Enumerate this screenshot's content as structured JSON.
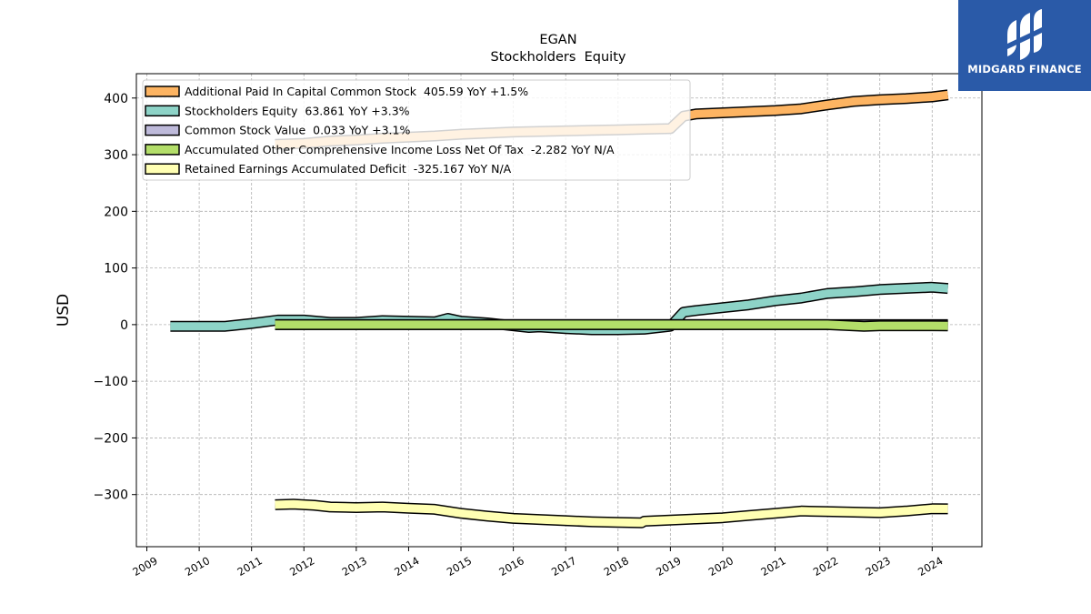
{
  "chart_data": {
    "type": "area",
    "title": "EGAN",
    "subtitle": "Stockholders  Equity",
    "ylabel": "USD",
    "xlabel": "",
    "xlim": [
      2008.8,
      2024.95
    ],
    "ylim": [
      -392,
      443
    ],
    "yticks": [
      400,
      300,
      200,
      100,
      0,
      -100,
      -200,
      -300
    ],
    "ytick_labels": [
      "400",
      "300",
      "200",
      "100",
      "0",
      "−100",
      "−200",
      "−300"
    ],
    "xticks": [
      2009,
      2010,
      2011,
      2012,
      2013,
      2014,
      2015,
      2016,
      2017,
      2018,
      2019,
      2020,
      2021,
      2022,
      2023,
      2024
    ],
    "xtick_labels": [
      "2009",
      "2010",
      "2011",
      "2012",
      "2013",
      "2014",
      "2015",
      "2016",
      "2017",
      "2018",
      "2019",
      "2020",
      "2021",
      "2022",
      "2023",
      "2024"
    ],
    "grid": true,
    "legend_position": "top-left",
    "series": [
      {
        "name": "Additional Paid In Capital Common Stock",
        "legend_label": "Additional Paid In Capital Common Stock  405.59 YoY +1.5%",
        "color": "#fdb462",
        "points": [
          [
            2011.45,
            318
          ],
          [
            2012.0,
            320
          ],
          [
            2012.5,
            324
          ],
          [
            2013.0,
            326
          ],
          [
            2013.5,
            329
          ],
          [
            2014.0,
            331
          ],
          [
            2014.5,
            333
          ],
          [
            2015.0,
            336
          ],
          [
            2015.5,
            338
          ],
          [
            2016.0,
            340
          ],
          [
            2016.5,
            341
          ],
          [
            2017.0,
            342
          ],
          [
            2017.5,
            343
          ],
          [
            2018.0,
            344
          ],
          [
            2018.5,
            345
          ],
          [
            2019.0,
            346
          ],
          [
            2019.25,
            368
          ],
          [
            2019.5,
            372
          ],
          [
            2020.0,
            374
          ],
          [
            2020.5,
            376
          ],
          [
            2021.0,
            378
          ],
          [
            2021.5,
            381
          ],
          [
            2022.0,
            388
          ],
          [
            2022.5,
            394
          ],
          [
            2023.0,
            397
          ],
          [
            2023.5,
            399
          ],
          [
            2024.0,
            402
          ],
          [
            2024.3,
            405.59
          ]
        ]
      },
      {
        "name": "Stockholders Equity",
        "legend_label": "Stockholders Equity  63.861 YoY +3.3%",
        "color": "#8dd3c7",
        "points": [
          [
            2009.45,
            -3
          ],
          [
            2010.0,
            -3
          ],
          [
            2010.5,
            -3
          ],
          [
            2011.0,
            2
          ],
          [
            2011.5,
            8
          ],
          [
            2012.0,
            8
          ],
          [
            2012.5,
            4
          ],
          [
            2013.0,
            4
          ],
          [
            2013.5,
            7
          ],
          [
            2014.0,
            6
          ],
          [
            2014.5,
            5
          ],
          [
            2014.75,
            11
          ],
          [
            2015.0,
            6
          ],
          [
            2015.5,
            3
          ],
          [
            2016.0,
            -2
          ],
          [
            2016.3,
            -5
          ],
          [
            2016.5,
            -4
          ],
          [
            2017.0,
            -7
          ],
          [
            2017.5,
            -9
          ],
          [
            2018.0,
            -9
          ],
          [
            2018.5,
            -8
          ],
          [
            2019.0,
            -3
          ],
          [
            2019.25,
            22
          ],
          [
            2019.5,
            25
          ],
          [
            2020.0,
            30
          ],
          [
            2020.5,
            35
          ],
          [
            2021.0,
            42
          ],
          [
            2021.5,
            47
          ],
          [
            2022.0,
            55
          ],
          [
            2022.5,
            58
          ],
          [
            2023.0,
            62
          ],
          [
            2023.5,
            64
          ],
          [
            2024.0,
            66
          ],
          [
            2024.3,
            63.861
          ]
        ]
      },
      {
        "name": "Common Stock Value",
        "legend_label": "Common Stock Value  0.033 YoY +3.1%",
        "color": "#bebada",
        "points": [
          [
            2011.45,
            0.03
          ],
          [
            2024.3,
            0.033
          ]
        ]
      },
      {
        "name": "Accumulated Other Comprehensive Income Loss Net Of Tax",
        "legend_label": "Accumulated Other Comprehensive Income Loss Net Of Tax  -2.282 YoY N/A",
        "color": "#b3de69",
        "points": [
          [
            2011.45,
            0
          ],
          [
            2018.0,
            0
          ],
          [
            2022.0,
            0
          ],
          [
            2022.7,
            -3
          ],
          [
            2023.0,
            -2
          ],
          [
            2023.5,
            -2
          ],
          [
            2024.0,
            -2
          ],
          [
            2024.3,
            -2.282
          ]
        ]
      },
      {
        "name": "Retained Earnings Accumulated Deficit",
        "legend_label": "Retained Earnings Accumulated Deficit  -325.167 YoY N/A",
        "color": "#ffffb3",
        "points": [
          [
            2011.45,
            -318
          ],
          [
            2011.8,
            -317
          ],
          [
            2012.2,
            -319
          ],
          [
            2012.5,
            -322
          ],
          [
            2013.0,
            -323
          ],
          [
            2013.5,
            -322
          ],
          [
            2014.0,
            -324
          ],
          [
            2014.5,
            -326
          ],
          [
            2015.0,
            -333
          ],
          [
            2015.5,
            -338
          ],
          [
            2016.0,
            -342
          ],
          [
            2016.5,
            -344
          ],
          [
            2017.0,
            -346
          ],
          [
            2017.5,
            -348
          ],
          [
            2018.0,
            -349
          ],
          [
            2018.45,
            -350
          ],
          [
            2018.5,
            -347
          ],
          [
            2019.0,
            -345
          ],
          [
            2019.5,
            -343
          ],
          [
            2020.0,
            -341
          ],
          [
            2020.5,
            -337
          ],
          [
            2021.0,
            -333
          ],
          [
            2021.5,
            -329
          ],
          [
            2022.0,
            -330
          ],
          [
            2022.5,
            -331
          ],
          [
            2023.0,
            -332
          ],
          [
            2023.5,
            -329
          ],
          [
            2024.0,
            -325
          ],
          [
            2024.3,
            -325.167
          ]
        ]
      }
    ]
  },
  "logo": {
    "text": "MIDGARD FINANCE",
    "background": "#2a5aa8"
  }
}
